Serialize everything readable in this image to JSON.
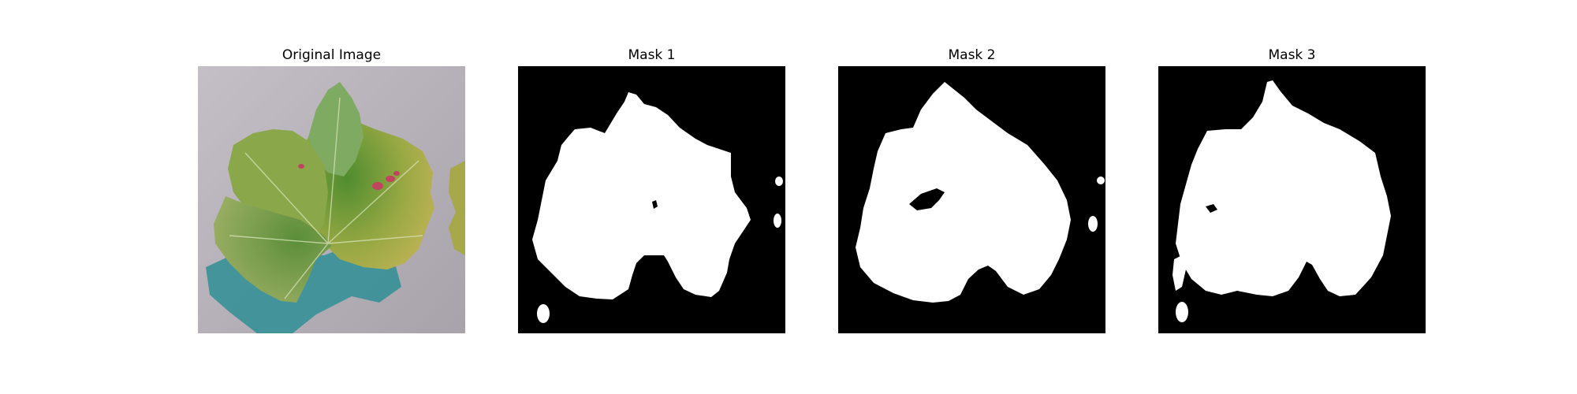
{
  "figure": {
    "panels": [
      {
        "title": "Original Image"
      },
      {
        "title": "Mask 1"
      },
      {
        "title": "Mask 2"
      },
      {
        "title": "Mask 3"
      }
    ]
  },
  "colors": {
    "background": "#ffffff",
    "mask_background": "#000000",
    "mask_foreground": "#ffffff",
    "surface_gray": "#b7b0b8",
    "leaf_green": "#5f9a3a",
    "leaf_yellow": "#c6b24c",
    "shadow_teal": "#2b8f94",
    "lesion_red": "#c0445f"
  }
}
